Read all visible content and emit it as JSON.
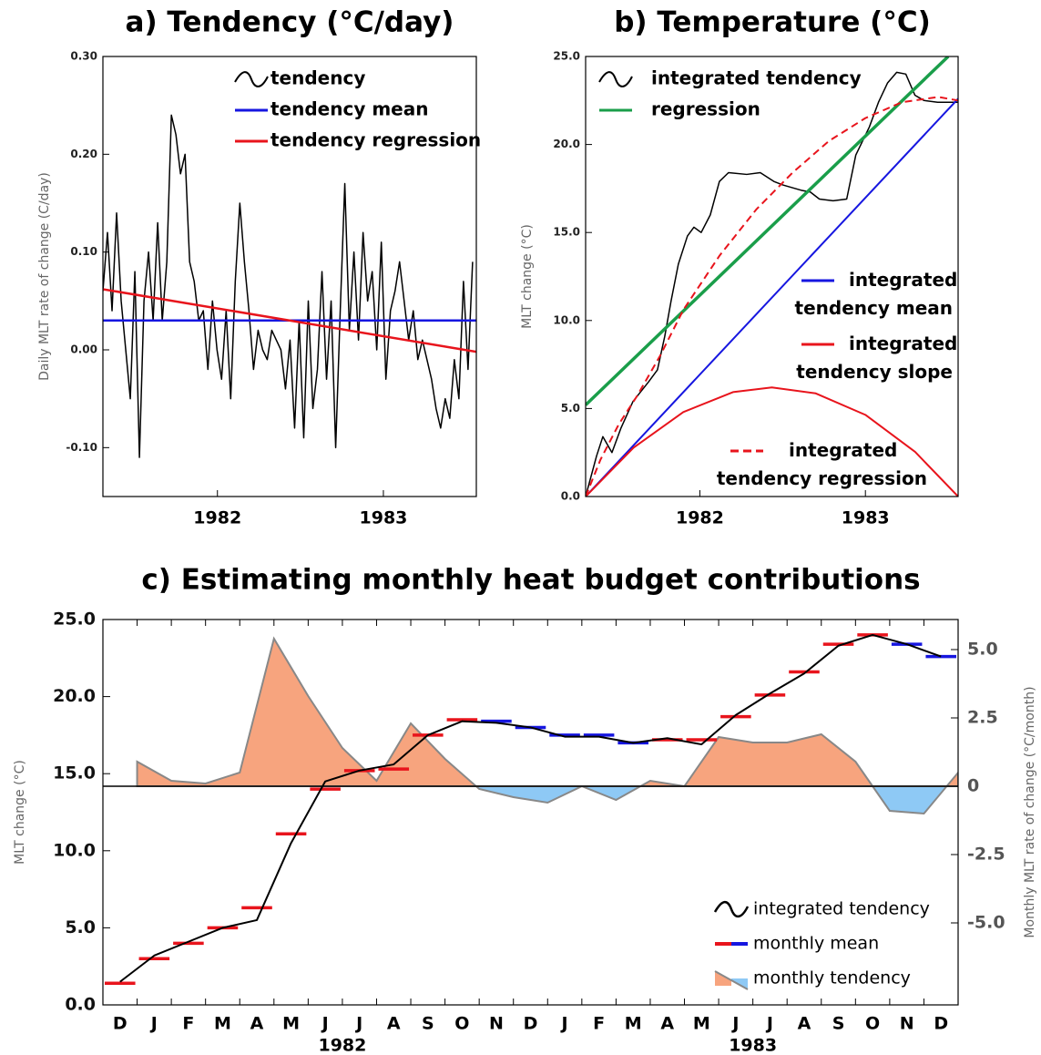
{
  "chart_data": [
    {
      "type": "line",
      "title": "a) Tendency (°C/day)",
      "ylabel": "Daily MLT rate of change (C/day)",
      "xlim": [
        1981.81,
        1984.06
      ],
      "xticks": [
        {
          "value": 1982.5,
          "label": "1982"
        },
        {
          "value": 1983.5,
          "label": "1983"
        }
      ],
      "ylim": [
        -0.15,
        0.3
      ],
      "yticks": [
        {
          "value": 0.3,
          "label": "0.30"
        },
        {
          "value": 0.2,
          "label": "0.20"
        },
        {
          "value": 0.1,
          "label": "0.10"
        },
        {
          "value": 0,
          "label": "0.00"
        },
        {
          "value": -0.1,
          "label": "-0.10"
        }
      ],
      "series": [
        {
          "name": "tendency",
          "color": "#000000",
          "width": 1.5,
          "x": [
            1981.81,
            1981.8375,
            1981.865,
            1981.8925,
            1981.92,
            1981.9475,
            1981.975,
            1982.0025,
            1982.03,
            1982.0575,
            1982.085,
            1982.1125,
            1982.14,
            1982.1675,
            1982.195,
            1982.2225,
            1982.25,
            1982.2775,
            1982.305,
            1982.3325,
            1982.36,
            1982.3875,
            1982.415,
            1982.4425,
            1982.47,
            1982.4975,
            1982.525,
            1982.5525,
            1982.58,
            1982.6075,
            1982.635,
            1982.6625,
            1982.69,
            1982.7175,
            1982.745,
            1982.7725,
            1982.8,
            1982.8275,
            1982.855,
            1982.8825,
            1982.91,
            1982.9375,
            1982.965,
            1982.9925,
            1983.02,
            1983.0475,
            1983.075,
            1983.1025,
            1983.13,
            1983.1575,
            1983.185,
            1983.2125,
            1983.24,
            1983.2675,
            1983.295,
            1983.3225,
            1983.35,
            1983.3775,
            1983.405,
            1983.4325,
            1983.46,
            1983.4875,
            1983.515,
            1983.5425,
            1983.57,
            1983.5975,
            1983.625,
            1983.6525,
            1983.68,
            1983.7075,
            1983.735,
            1983.7625,
            1983.79,
            1983.8175,
            1983.845,
            1983.8725,
            1983.9,
            1983.9275,
            1983.955,
            1983.9825,
            1984.01,
            1984.0375
          ],
          "values": [
            0.06,
            0.12,
            0.04,
            0.14,
            0.05,
            0.0,
            -0.05,
            0.08,
            -0.11,
            0.05,
            0.1,
            0.03,
            0.13,
            0.03,
            0.09,
            0.24,
            0.22,
            0.18,
            0.2,
            0.09,
            0.07,
            0.03,
            0.04,
            -0.02,
            0.05,
            0.0,
            -0.03,
            0.04,
            -0.05,
            0.07,
            0.15,
            0.09,
            0.04,
            -0.02,
            0.02,
            0.0,
            -0.01,
            0.02,
            0.01,
            0.0,
            -0.04,
            0.01,
            -0.08,
            0.03,
            -0.09,
            0.05,
            -0.06,
            -0.02,
            0.08,
            -0.03,
            0.05,
            -0.1,
            0.04,
            0.17,
            0.02,
            0.1,
            0.01,
            0.12,
            0.05,
            0.08,
            0.0,
            0.11,
            -0.03,
            0.04,
            0.06,
            0.09,
            0.05,
            0.01,
            0.04,
            -0.01,
            0.01,
            -0.01,
            -0.03,
            -0.06,
            -0.08,
            -0.05,
            -0.07,
            -0.01,
            -0.05,
            0.07,
            -0.02,
            0.09
          ]
        },
        {
          "name": "tendency mean",
          "color": "#1616e0",
          "width": 2.5,
          "x": [
            1981.81,
            1984.06
          ],
          "values": [
            0.03,
            0.03
          ]
        },
        {
          "name": "tendency regression",
          "color": "#e8141c",
          "width": 2.5,
          "x": [
            1981.81,
            1984.06
          ],
          "values": [
            0.062,
            -0.002
          ]
        }
      ]
    },
    {
      "type": "line",
      "title": "b) Temperature (°C)",
      "ylabel": "MLT change (°C)",
      "xlim": [
        1981.81,
        1984.06
      ],
      "xticks": [
        {
          "value": 1982.5,
          "label": "1982"
        },
        {
          "value": 1983.5,
          "label": "1983"
        }
      ],
      "ylim": [
        0,
        25
      ],
      "yticks": [
        {
          "value": 0,
          "label": "0.0"
        },
        {
          "value": 5,
          "label": "5.0"
        },
        {
          "value": 10,
          "label": "10.0"
        },
        {
          "value": 15,
          "label": "15.0"
        },
        {
          "value": 20,
          "label": "20.0"
        },
        {
          "value": 25,
          "label": "25.0"
        }
      ],
      "series": [
        {
          "name": "integrated tendency",
          "color": "#000000",
          "width": 1.5,
          "x": [
            1981.81,
            1981.876,
            1981.914,
            1981.969,
            1982.024,
            1982.096,
            1982.189,
            1982.244,
            1982.288,
            1982.326,
            1982.37,
            1982.425,
            1982.464,
            1982.508,
            1982.563,
            1982.618,
            1982.673,
            1982.783,
            1982.865,
            1982.947,
            1983.002,
            1983.112,
            1983.167,
            1983.222,
            1983.305,
            1983.387,
            1983.442,
            1983.524,
            1983.579,
            1983.634,
            1983.689,
            1983.744,
            1983.799,
            1983.854,
            1983.936,
            1984.057
          ],
          "values": [
            0,
            2.3,
            3.4,
            2.5,
            3.9,
            5.4,
            6.5,
            7.2,
            9.1,
            11.1,
            13.2,
            14.8,
            15.3,
            15.0,
            16.0,
            17.9,
            18.4,
            18.3,
            18.4,
            17.9,
            17.7,
            17.4,
            17.3,
            16.9,
            16.8,
            16.9,
            19.4,
            21.0,
            22.4,
            23.5,
            24.1,
            24.0,
            22.8,
            22.5,
            22.4,
            22.4
          ]
        },
        {
          "name": "regression",
          "color": "#1a9e4a",
          "width": 3.5,
          "x": [
            1981.81,
            1984.0
          ],
          "values": [
            5.2,
            25.0
          ]
        },
        {
          "name": "integrated tendency mean",
          "color": "#1616e0",
          "width": 2,
          "x": [
            1981.81,
            1984.06
          ],
          "values": [
            0,
            22.6
          ]
        },
        {
          "name": "integrated tendency slope",
          "color": "#e8141c",
          "width": 2,
          "x": [
            1981.81,
            1982.1,
            1982.4,
            1982.7,
            1982.935,
            1983.2,
            1983.5,
            1983.8,
            1984.06
          ],
          "values": [
            0,
            2.78,
            4.8,
            5.93,
            6.2,
            5.86,
            4.64,
            2.54,
            0
          ]
        },
        {
          "name": "integrated tendency regression",
          "color": "#e8141c",
          "width": 2,
          "dash": true,
          "x": [
            1981.81,
            1981.9,
            1982.01,
            1982.12,
            1982.26,
            1982.4,
            1982.62,
            1982.84,
            1983.06,
            1983.28,
            1983.5,
            1983.72,
            1983.94,
            1984.06
          ],
          "values": [
            0,
            2.1,
            4.1,
            5.7,
            8.0,
            10.6,
            13.7,
            16.3,
            18.4,
            20.2,
            21.5,
            22.4,
            22.7,
            22.5
          ]
        }
      ]
    },
    {
      "type": "combo",
      "title": "c) Estimating monthly heat budget contributions",
      "ylabel": "MLT change (°C)",
      "y2label": "Monthly MLT rate of change (°C/month)",
      "categories": [
        "D",
        "J",
        "F",
        "M",
        "A",
        "M",
        "J",
        "J",
        "A",
        "S",
        "O",
        "N",
        "D",
        "J",
        "F",
        "M",
        "A",
        "M",
        "J",
        "J",
        "A",
        "S",
        "O",
        "N",
        "D"
      ],
      "year_labels": [
        "1982",
        "1983"
      ],
      "ylim": [
        0,
        25
      ],
      "yticks": [
        {
          "value": 0,
          "label": "0.0"
        },
        {
          "value": 5,
          "label": "5.0"
        },
        {
          "value": 10,
          "label": "10.0"
        },
        {
          "value": 15,
          "label": "15.0"
        },
        {
          "value": 20,
          "label": "20.0"
        },
        {
          "value": 25,
          "label": "25.0"
        }
      ],
      "y2lim": [
        -8.0,
        6.1
      ],
      "y2ticks": [
        {
          "value": -5,
          "label": "-5.0"
        },
        -2.5,
        0,
        2.5,
        {
          "value": 5,
          "label": "5.0"
        }
      ],
      "series": [
        {
          "name": "integrated tendency",
          "type": "line",
          "color": "#000000",
          "values": [
            1.5,
            3.2,
            4.1,
            5.0,
            5.5,
            10.5,
            14.5,
            15.2,
            15.6,
            17.5,
            18.4,
            18.3,
            18.0,
            17.4,
            17.4,
            17.0,
            17.3,
            16.9,
            18.8,
            20.2,
            21.5,
            23.3,
            24.0,
            23.4,
            22.6
          ]
        },
        {
          "name": "monthly mean",
          "type": "step",
          "colors": [
            "#e8141c",
            "#e8141c",
            "#e8141c",
            "#e8141c",
            "#e8141c",
            "#e8141c",
            "#e8141c",
            "#e8141c",
            "#e8141c",
            "#e8141c",
            "#e8141c",
            "#1616e0",
            "#1616e0",
            "#1616e0",
            "#1616e0",
            "#1616e0",
            "#e8141c",
            "#e8141c",
            "#e8141c",
            "#e8141c",
            "#e8141c",
            "#e8141c",
            "#e8141c",
            "#1616e0",
            "#1616e0"
          ],
          "values": [
            1.4,
            3.0,
            4.0,
            5.0,
            6.3,
            11.1,
            14.0,
            15.2,
            15.3,
            17.5,
            18.5,
            18.4,
            18.0,
            17.5,
            17.5,
            17.0,
            17.2,
            17.2,
            18.7,
            20.1,
            21.6,
            23.4,
            24.0,
            23.4,
            22.6
          ]
        },
        {
          "name": "monthly tendency",
          "type": "area",
          "axis": "y2",
          "colors": [
            "#f7a47e",
            "#8ec9f5"
          ],
          "line_color": "#888888",
          "values": [
            0.9,
            0.2,
            0.1,
            0.5,
            5.4,
            3.3,
            1.4,
            0.2,
            2.3,
            1.0,
            -0.1,
            -0.4,
            -0.6,
            0.0,
            -0.5,
            0.2,
            0.0,
            1.8,
            1.6,
            1.6,
            1.9,
            0.9,
            -0.9,
            -1.0,
            0.5
          ]
        }
      ]
    }
  ]
}
